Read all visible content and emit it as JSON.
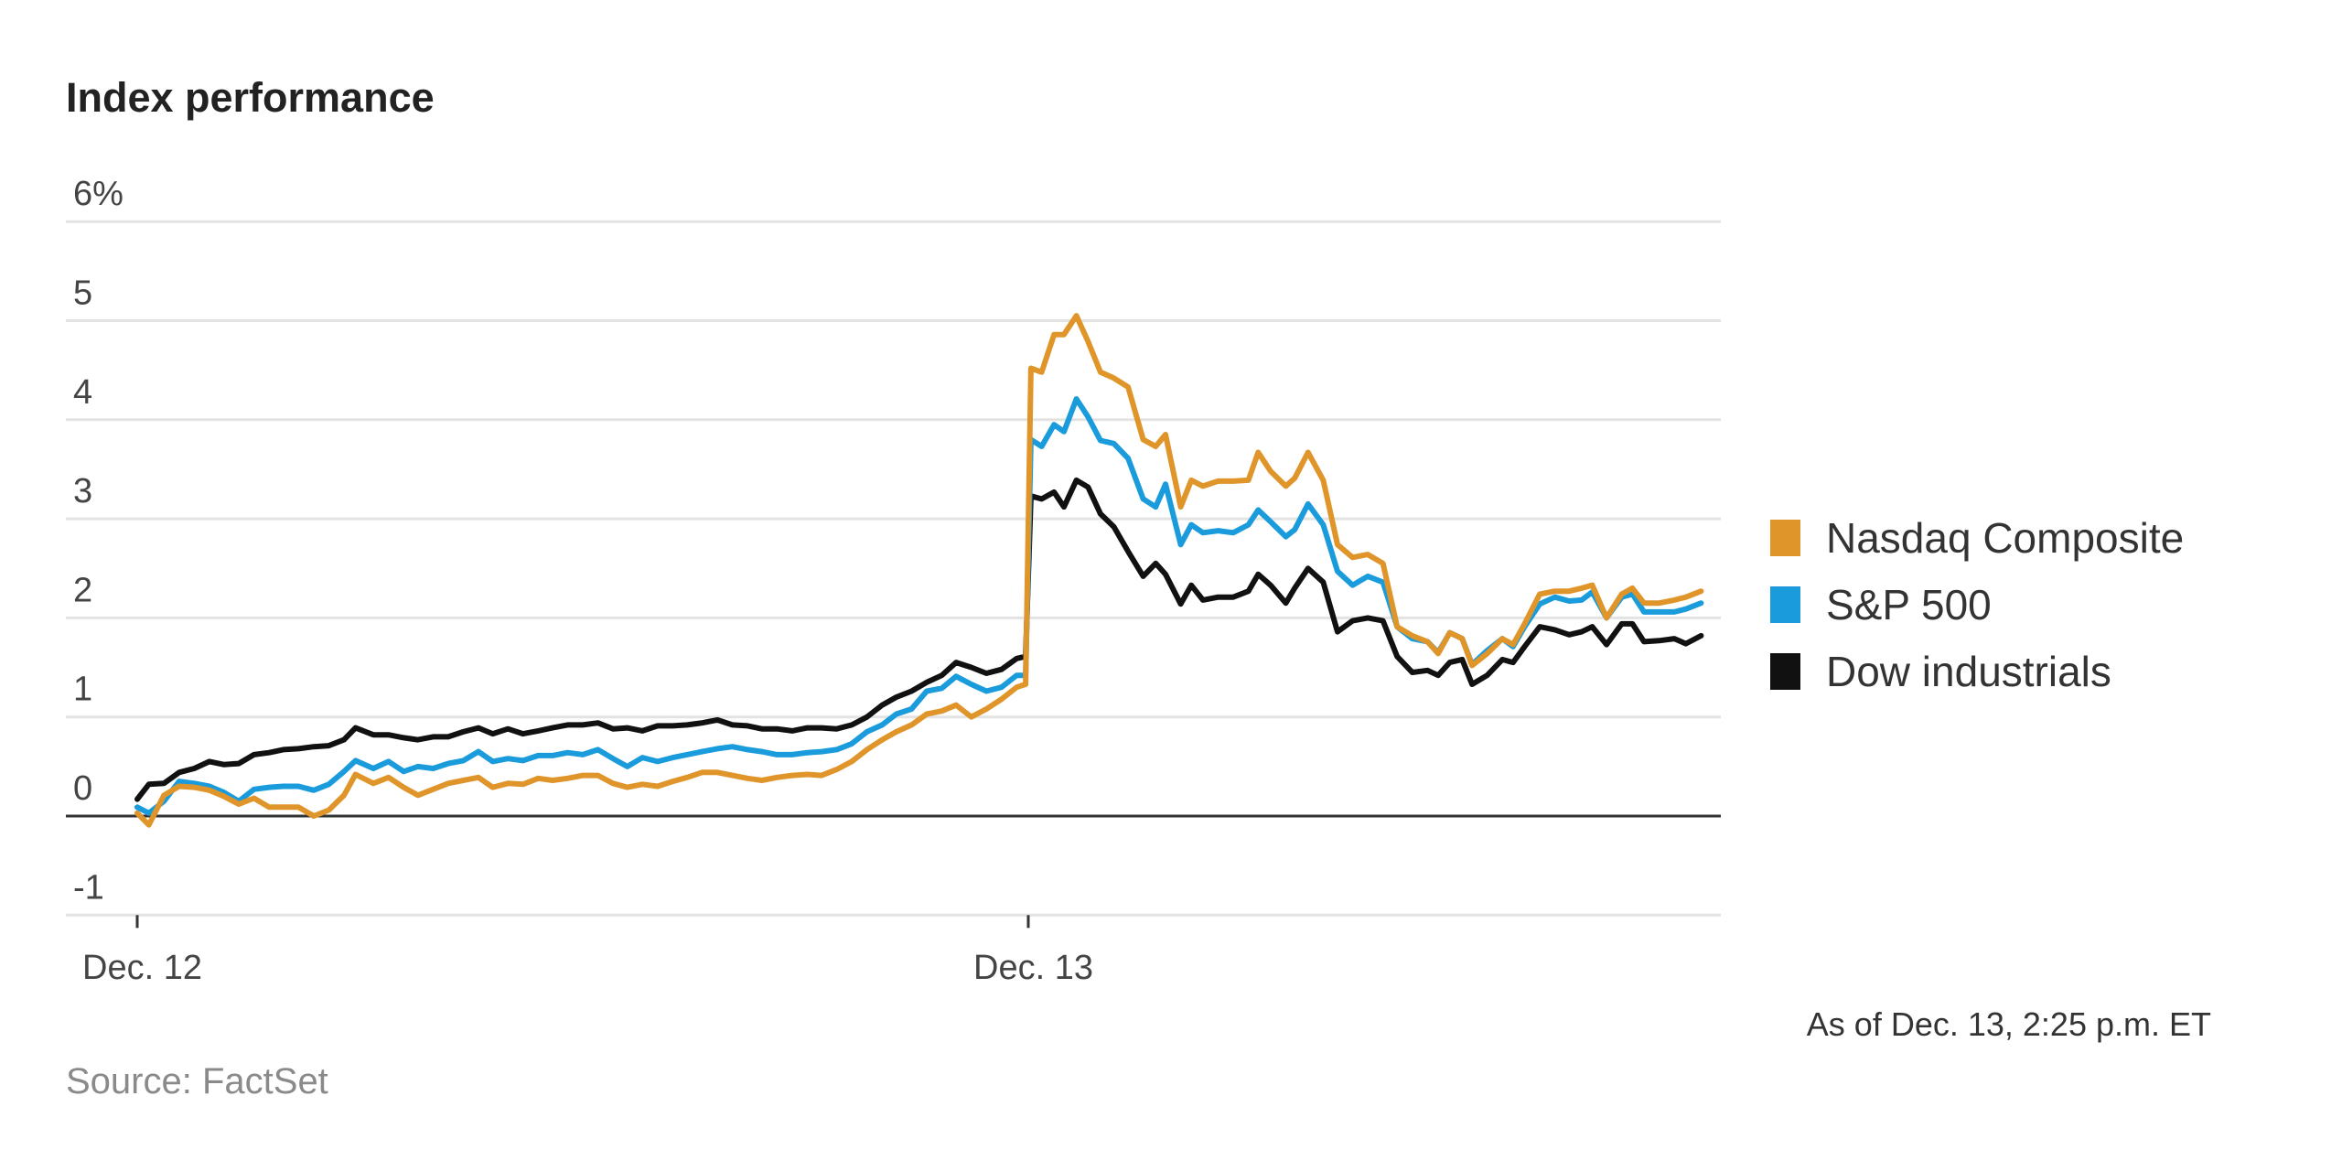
{
  "chart_data": {
    "type": "line",
    "title": "Index performance",
    "xlabel": "",
    "ylabel": "",
    "ylim": [
      -1,
      6
    ],
    "yticks": [
      {
        "value": 6,
        "label": "6%"
      },
      {
        "value": 5,
        "label": "5"
      },
      {
        "value": 4,
        "label": "4"
      },
      {
        "value": 3,
        "label": "3"
      },
      {
        "value": 2,
        "label": "2"
      },
      {
        "value": 1,
        "label": "1"
      },
      {
        "value": 0,
        "label": "0"
      },
      {
        "value": -1,
        "label": "-1"
      }
    ],
    "xunit": "trading days since Dec. 12 open",
    "xticks": [
      {
        "value": 0,
        "label": "Dec. 12"
      },
      {
        "value": 1,
        "label": "Dec. 13"
      }
    ],
    "grid": true,
    "legend_position": "right",
    "x": [
      0,
      0.013,
      0.03,
      0.047,
      0.064,
      0.081,
      0.097,
      0.114,
      0.131,
      0.148,
      0.164,
      0.181,
      0.198,
      0.215,
      0.232,
      0.245,
      0.265,
      0.282,
      0.299,
      0.315,
      0.332,
      0.349,
      0.366,
      0.383,
      0.399,
      0.416,
      0.433,
      0.45,
      0.466,
      0.483,
      0.5,
      0.517,
      0.534,
      0.55,
      0.567,
      0.584,
      0.601,
      0.617,
      0.634,
      0.651,
      0.668,
      0.685,
      0.701,
      0.718,
      0.735,
      0.752,
      0.768,
      0.785,
      0.802,
      0.819,
      0.836,
      0.852,
      0.869,
      0.886,
      0.903,
      0.919,
      0.936,
      0.953,
      0.97,
      0.987,
      0.997,
      1.003,
      1.015,
      1.029,
      1.04,
      1.054,
      1.067,
      1.081,
      1.096,
      1.112,
      1.129,
      1.143,
      1.154,
      1.171,
      1.183,
      1.196,
      1.213,
      1.23,
      1.247,
      1.258,
      1.272,
      1.289,
      1.299,
      1.314,
      1.331,
      1.347,
      1.364,
      1.381,
      1.398,
      1.414,
      1.431,
      1.448,
      1.46,
      1.473,
      1.487,
      1.498,
      1.515,
      1.532,
      1.544,
      1.557,
      1.574,
      1.591,
      1.607,
      1.621,
      1.633,
      1.649,
      1.666,
      1.678,
      1.691,
      1.708,
      1.725,
      1.738,
      1.755
    ],
    "series": [
      {
        "name": "Nasdaq Composite",
        "color": "#e0952a",
        "values": [
          0.03,
          -0.09,
          0.21,
          0.3,
          0.29,
          0.26,
          0.2,
          0.12,
          0.18,
          0.09,
          0.09,
          0.09,
          0.0,
          0.06,
          0.21,
          0.42,
          0.33,
          0.39,
          0.29,
          0.21,
          0.27,
          0.33,
          0.36,
          0.39,
          0.29,
          0.33,
          0.32,
          0.38,
          0.36,
          0.38,
          0.41,
          0.41,
          0.33,
          0.29,
          0.32,
          0.3,
          0.35,
          0.39,
          0.44,
          0.44,
          0.41,
          0.38,
          0.36,
          0.39,
          0.41,
          0.42,
          0.41,
          0.47,
          0.55,
          0.67,
          0.77,
          0.85,
          0.92,
          1.03,
          1.06,
          1.12,
          1.0,
          1.08,
          1.18,
          1.3,
          1.33,
          4.52,
          4.48,
          4.86,
          4.86,
          5.05,
          4.79,
          4.48,
          4.42,
          4.33,
          3.8,
          3.73,
          3.85,
          3.12,
          3.39,
          3.33,
          3.38,
          3.38,
          3.39,
          3.67,
          3.48,
          3.33,
          3.41,
          3.67,
          3.39,
          2.74,
          2.61,
          2.64,
          2.55,
          1.91,
          1.82,
          1.76,
          1.64,
          1.85,
          1.79,
          1.52,
          1.64,
          1.79,
          1.73,
          1.94,
          2.24,
          2.27,
          2.27,
          2.3,
          2.33,
          2.0,
          2.24,
          2.3,
          2.15,
          2.15,
          2.18,
          2.21,
          2.27
        ]
      },
      {
        "name": "S&P 500",
        "color": "#1a9bdc",
        "values": [
          0.09,
          0.03,
          0.15,
          0.35,
          0.33,
          0.3,
          0.24,
          0.15,
          0.27,
          0.29,
          0.3,
          0.3,
          0.26,
          0.32,
          0.45,
          0.56,
          0.48,
          0.55,
          0.45,
          0.5,
          0.48,
          0.53,
          0.56,
          0.65,
          0.55,
          0.58,
          0.56,
          0.61,
          0.61,
          0.64,
          0.62,
          0.67,
          0.58,
          0.5,
          0.59,
          0.55,
          0.59,
          0.62,
          0.65,
          0.68,
          0.7,
          0.67,
          0.65,
          0.62,
          0.62,
          0.64,
          0.65,
          0.67,
          0.73,
          0.85,
          0.92,
          1.03,
          1.08,
          1.26,
          1.29,
          1.41,
          1.33,
          1.26,
          1.3,
          1.42,
          1.42,
          3.8,
          3.73,
          3.95,
          3.88,
          4.21,
          4.03,
          3.79,
          3.76,
          3.61,
          3.2,
          3.12,
          3.35,
          2.74,
          2.94,
          2.86,
          2.88,
          2.86,
          2.94,
          3.09,
          2.97,
          2.82,
          2.89,
          3.15,
          2.94,
          2.47,
          2.33,
          2.42,
          2.36,
          1.91,
          1.79,
          1.76,
          1.65,
          1.85,
          1.79,
          1.53,
          1.67,
          1.79,
          1.71,
          1.91,
          2.14,
          2.21,
          2.17,
          2.18,
          2.26,
          2.0,
          2.21,
          2.24,
          2.06,
          2.06,
          2.06,
          2.09,
          2.15
        ]
      },
      {
        "name": "Dow industrials",
        "color": "#111111",
        "values": [
          0.17,
          0.32,
          0.33,
          0.44,
          0.48,
          0.55,
          0.52,
          0.53,
          0.62,
          0.64,
          0.67,
          0.68,
          0.7,
          0.71,
          0.77,
          0.89,
          0.82,
          0.82,
          0.79,
          0.77,
          0.8,
          0.8,
          0.85,
          0.89,
          0.83,
          0.88,
          0.83,
          0.86,
          0.89,
          0.92,
          0.92,
          0.94,
          0.88,
          0.89,
          0.86,
          0.91,
          0.91,
          0.92,
          0.94,
          0.97,
          0.92,
          0.91,
          0.88,
          0.88,
          0.86,
          0.89,
          0.89,
          0.88,
          0.92,
          1.0,
          1.12,
          1.2,
          1.26,
          1.35,
          1.42,
          1.55,
          1.5,
          1.44,
          1.48,
          1.59,
          1.61,
          3.23,
          3.2,
          3.27,
          3.12,
          3.39,
          3.32,
          3.05,
          2.92,
          2.67,
          2.42,
          2.55,
          2.44,
          2.14,
          2.33,
          2.18,
          2.21,
          2.21,
          2.27,
          2.44,
          2.33,
          2.15,
          2.3,
          2.5,
          2.36,
          1.86,
          1.97,
          2.0,
          1.97,
          1.61,
          1.45,
          1.47,
          1.42,
          1.55,
          1.58,
          1.33,
          1.42,
          1.58,
          1.55,
          1.71,
          1.91,
          1.88,
          1.83,
          1.86,
          1.91,
          1.73,
          1.94,
          1.94,
          1.76,
          1.77,
          1.79,
          1.74,
          1.82
        ]
      }
    ],
    "annotations": {
      "as_of": "As of Dec. 13, 2:25 p.m. ET",
      "source": "Source: FactSet"
    }
  }
}
